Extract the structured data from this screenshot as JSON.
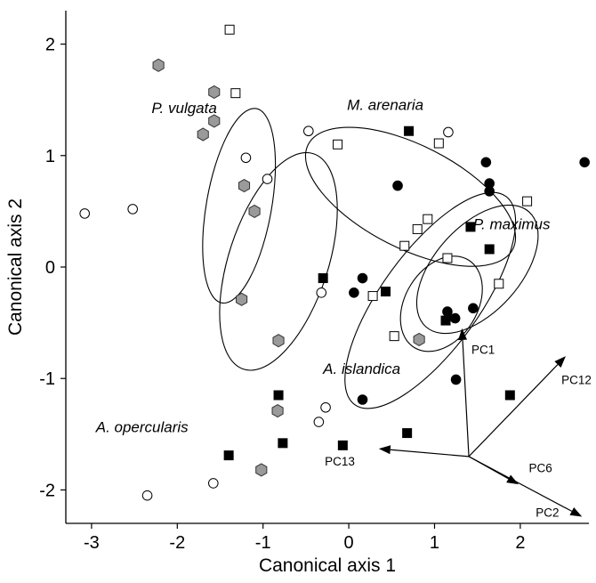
{
  "chart_data": {
    "type": "scatter",
    "title": "",
    "xlabel": "Canonical axis 1",
    "ylabel": "Canonical axis 2",
    "xlim": [
      -3.3,
      2.8
    ],
    "ylim": [
      -2.3,
      2.3
    ],
    "x_ticks": [
      -3,
      -2,
      -1,
      0,
      1,
      2
    ],
    "x_tick_labels": [
      "-3",
      "-2",
      "-1",
      "0",
      "1",
      "2"
    ],
    "y_ticks": [
      -2,
      -1,
      0,
      1,
      2
    ],
    "y_tick_labels": [
      "-2",
      "-1",
      "0",
      "1",
      "2"
    ],
    "grid": false,
    "series": [
      {
        "marker": "hexagon-grey",
        "color": "#9a9a9a",
        "points": [
          [
            -2.22,
            1.81
          ],
          [
            -1.57,
            1.57
          ],
          [
            -1.57,
            1.31
          ],
          [
            -1.7,
            1.19
          ],
          [
            -1.22,
            0.73
          ],
          [
            -1.1,
            0.5
          ],
          [
            -1.25,
            -0.29
          ],
          [
            -0.82,
            -0.66
          ],
          [
            0.82,
            -0.65
          ],
          [
            -0.83,
            -1.29
          ],
          [
            -1.02,
            -1.82
          ]
        ]
      },
      {
        "marker": "open-circle",
        "color": "#ffffff",
        "points": [
          [
            -3.08,
            0.48
          ],
          [
            -2.52,
            0.52
          ],
          [
            -1.2,
            0.98
          ],
          [
            -0.95,
            0.79
          ],
          [
            -0.47,
            1.22
          ],
          [
            -0.32,
            -0.23
          ],
          [
            1.16,
            1.21
          ],
          [
            -0.27,
            -1.26
          ],
          [
            -0.35,
            -1.39
          ],
          [
            -1.58,
            -1.94
          ],
          [
            -2.35,
            -2.05
          ]
        ]
      },
      {
        "marker": "open-square",
        "color": "#ffffff",
        "points": [
          [
            -1.39,
            2.13
          ],
          [
            -1.32,
            1.56
          ],
          [
            -0.13,
            1.1
          ],
          [
            1.05,
            1.11
          ],
          [
            2.08,
            0.59
          ],
          [
            0.92,
            0.43
          ],
          [
            0.8,
            0.34
          ],
          [
            0.65,
            0.19
          ],
          [
            1.15,
            0.08
          ],
          [
            1.75,
            -0.15
          ],
          [
            0.28,
            -0.26
          ],
          [
            0.53,
            -0.62
          ]
        ]
      },
      {
        "marker": "filled-circle",
        "color": "#000000",
        "points": [
          [
            2.75,
            0.94
          ],
          [
            1.6,
            0.94
          ],
          [
            1.64,
            0.75
          ],
          [
            1.64,
            0.68
          ],
          [
            0.57,
            0.73
          ],
          [
            0.16,
            -0.1
          ],
          [
            0.06,
            -0.23
          ],
          [
            1.15,
            -0.4
          ],
          [
            1.45,
            -0.37
          ],
          [
            1.24,
            -0.46
          ],
          [
            1.25,
            -1.01
          ],
          [
            0.16,
            -1.19
          ]
        ]
      },
      {
        "marker": "filled-square",
        "color": "#000000",
        "points": [
          [
            0.7,
            1.22
          ],
          [
            1.42,
            0.36
          ],
          [
            1.64,
            0.16
          ],
          [
            -0.3,
            -0.1
          ],
          [
            0.43,
            -0.22
          ],
          [
            1.13,
            -0.48
          ],
          [
            1.88,
            -1.15
          ],
          [
            -0.82,
            -1.15
          ],
          [
            -0.77,
            -1.58
          ],
          [
            -0.07,
            -1.6
          ],
          [
            0.68,
            -1.49
          ],
          [
            -1.4,
            -1.69
          ]
        ]
      }
    ],
    "ellipses": [
      {
        "cx": -1.28,
        "cy": 0.55,
        "rx": 1.15,
        "ry": 0.38,
        "angle_deg": 80
      },
      {
        "cx": -0.82,
        "cy": 0.05,
        "rx": 1.32,
        "ry": 0.58,
        "angle_deg": 72
      },
      {
        "cx": 0.72,
        "cy": 0.63,
        "rx": 1.34,
        "ry": 0.6,
        "angle_deg": -27
      },
      {
        "cx": 0.95,
        "cy": -0.3,
        "rx": 1.5,
        "ry": 0.57,
        "angle_deg": 54
      },
      {
        "cx": 1.08,
        "cy": -0.33,
        "rx": 0.6,
        "ry": 0.42,
        "angle_deg": 58
      },
      {
        "cx": 1.5,
        "cy": -0.02,
        "rx": 0.9,
        "ry": 0.5,
        "angle_deg": 48
      }
    ],
    "species_labels": [
      {
        "text": "P. vulgata",
        "x": -2.3,
        "y": 1.38
      },
      {
        "text": "M. arenaria",
        "x": -0.02,
        "y": 1.41
      },
      {
        "text": "P. maximus",
        "x": 1.45,
        "y": 0.34
      },
      {
        "text": "A. islandica",
        "x": -0.3,
        "y": -0.96
      },
      {
        "text": "A. opercularis",
        "x": -2.95,
        "y": -1.48
      }
    ],
    "vectors": {
      "origin": [
        1.4,
        -1.7
      ],
      "items": [
        {
          "name": "PC1",
          "x": 1.32,
          "y": -0.55,
          "label_x": 1.43,
          "label_y": -0.78
        },
        {
          "name": "PC12",
          "x": 2.53,
          "y": -0.8,
          "label_x": 2.48,
          "label_y": -1.05
        },
        {
          "name": "PC13",
          "x": 0.35,
          "y": -1.63,
          "label_x": -0.28,
          "label_y": -1.78
        },
        {
          "name": "PC6",
          "x": 1.98,
          "y": -1.95,
          "label_x": 2.1,
          "label_y": -1.84
        },
        {
          "name": "PC2",
          "x": 2.72,
          "y": -2.24,
          "label_x": 2.18,
          "label_y": -2.24
        }
      ]
    }
  }
}
